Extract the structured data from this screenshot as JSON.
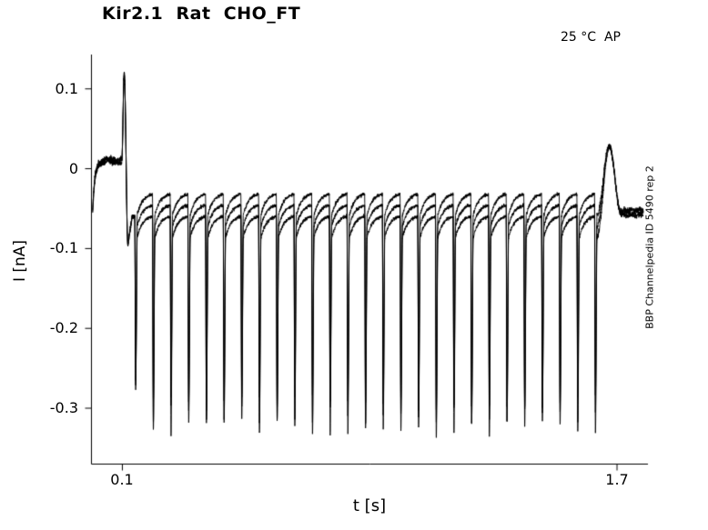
{
  "chart_data": {
    "type": "line",
    "title": "Kir2.1  Rat  CHO_FT",
    "xlabel": "t [s]",
    "ylabel": "I [nA]",
    "annotations": {
      "top_right": "25 °C  AP",
      "right_side_vertical": "BBP Channelpedia ID 5490 rep 2"
    },
    "xlim": [
      0.0,
      1.8
    ],
    "ylim": [
      -0.37,
      0.143
    ],
    "xticks": [
      0.1,
      1.7
    ],
    "xtick_labels": [
      "0.1",
      "1.7"
    ],
    "yticks": [
      0.1,
      0,
      -0.1,
      -0.2,
      -0.3
    ],
    "ytick_labels": [
      "0.1",
      "0",
      "-0.1",
      "-0.2",
      "-0.3"
    ],
    "grid": false,
    "line_color": "#000000",
    "background": "#ffffff",
    "description": "Whole-cell current trace: action-potential stimulation train evokes ~27 repetitive inward current spikes to about -0.33 nA; three overlaid sweeps.",
    "trace": {
      "baseline": {
        "t_start": 0.004,
        "level": 0.01,
        "start_level": -0.105,
        "rise_tau": 0.007,
        "noise": 0.004
      },
      "stimulus_artifact": {
        "t_rise_start": 0.098,
        "t_peak": 0.106,
        "peak": 0.118,
        "t_trough_time": 0.118,
        "trough": -0.095,
        "recover_level": -0.06
      },
      "spike_train": {
        "t_first": 0.14,
        "interval": 0.0572,
        "count": 27,
        "first_spike_depth": -0.265,
        "depth_jitter": 0.012,
        "downstroke_s": 0.003,
        "upstroke_s": 0.005,
        "sweeps": [
          {
            "spike_depth": -0.325,
            "inter_level": -0.066
          },
          {
            "spike_depth": -0.308,
            "inter_level": -0.052
          },
          {
            "spike_depth": -0.295,
            "inter_level": -0.038
          }
        ]
      },
      "rebound": {
        "t_peak": 1.675,
        "peak": 0.028,
        "tail_t": 1.72,
        "tail_level": -0.055,
        "t_end": 1.785,
        "noise": 0.004
      }
    }
  }
}
